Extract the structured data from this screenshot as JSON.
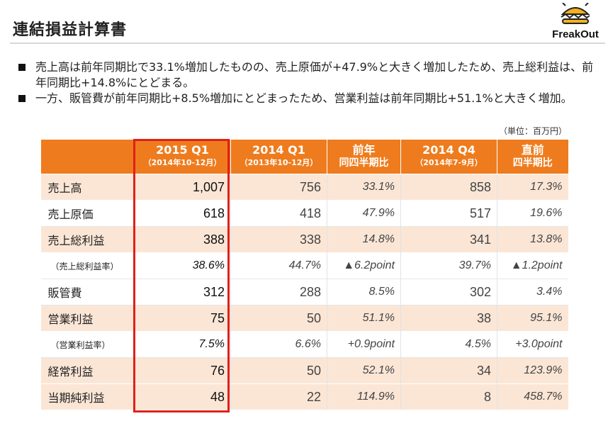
{
  "title": "連結損益計算書",
  "logo": {
    "text": "FreakOut"
  },
  "bullets": [
    "売上高は前年同期比で33.1%増加したものの、売上原価が+47.9%と大きく増加したため、売上総利益は、前年同期比+14.8%にとどまる。",
    "一方、販管費が前年同期比+8.5%増加にとどまったため、営業利益は前年同期比+51.1%と大きく増加。"
  ],
  "unit": "（単位：百万円）",
  "table": {
    "headers": [
      {
        "main": "",
        "sub": ""
      },
      {
        "main": "2015 Q1",
        "sub": "（2014年10-12月）"
      },
      {
        "main": "2014 Q1",
        "sub": "（2013年10-12月）"
      },
      {
        "main": "前年",
        "sub": "同四半期比"
      },
      {
        "main": "2014 Q4",
        "sub": "（2014年7-9月）"
      },
      {
        "main": "直前",
        "sub": "四半期比"
      }
    ],
    "rows": [
      {
        "label": "売上高",
        "q1_2015": "1,007",
        "q1_2014": "756",
        "yoy": "33.1%",
        "q4_2014": "858",
        "qoq": "17.3%"
      },
      {
        "label": "売上原価",
        "q1_2015": "618",
        "q1_2014": "418",
        "yoy": "47.9%",
        "q4_2014": "517",
        "qoq": "19.6%"
      },
      {
        "label": "売上総利益",
        "q1_2015": "388",
        "q1_2014": "338",
        "yoy": "14.8%",
        "q4_2014": "341",
        "qoq": "13.8%"
      },
      {
        "label": "（売上総利益率）",
        "q1_2015": "38.6%",
        "q1_2014": "44.7%",
        "yoy": "▲6.2point",
        "q4_2014": "39.7%",
        "qoq": "▲1.2point"
      },
      {
        "label": "販管費",
        "q1_2015": "312",
        "q1_2014": "288",
        "yoy": "8.5%",
        "q4_2014": "302",
        "qoq": "3.4%"
      },
      {
        "label": "営業利益",
        "q1_2015": "75",
        "q1_2014": "50",
        "yoy": "51.1%",
        "q4_2014": "38",
        "qoq": "95.1%"
      },
      {
        "label": "（営業利益率）",
        "q1_2015": "7.5%",
        "q1_2014": "6.6%",
        "yoy": "+0.9point",
        "q4_2014": "4.5%",
        "qoq": "+3.0point"
      },
      {
        "label": "経常利益",
        "q1_2015": "76",
        "q1_2014": "50",
        "yoy": "52.1%",
        "q4_2014": "34",
        "qoq": "123.9%"
      },
      {
        "label": "当期純利益",
        "q1_2015": "48",
        "q1_2014": "22",
        "yoy": "114.9%",
        "q4_2014": "8",
        "qoq": "458.7%"
      }
    ]
  },
  "colors": {
    "header_bg": "#ee7c1e",
    "row_shade": "#fbe6d6",
    "highlight_border": "#e0201b"
  }
}
